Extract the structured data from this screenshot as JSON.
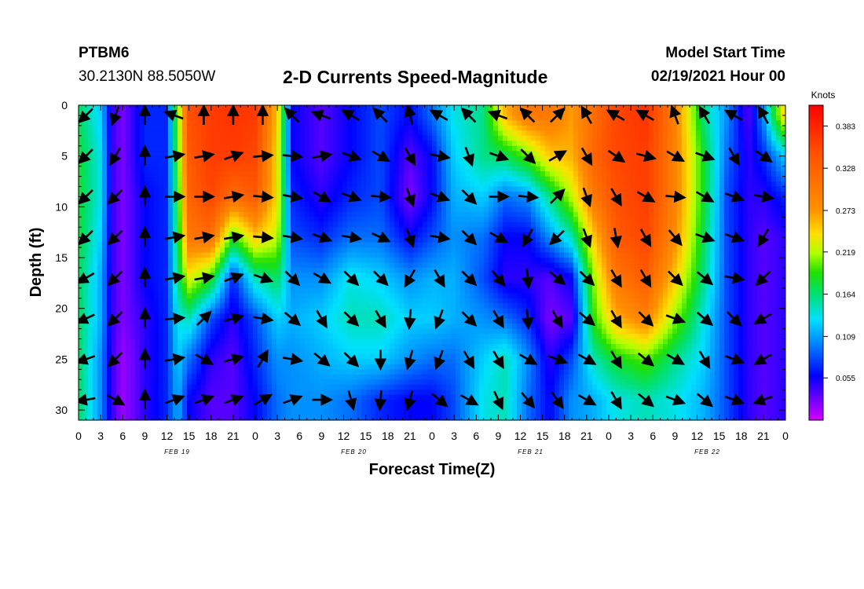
{
  "header": {
    "station_id": "PTBM6",
    "coords": "30.2130N 88.5050W",
    "title": "2-D Currents Speed-Magnitude",
    "model_label": "Model Start Time",
    "model_time": "02/19/2021 Hour 00"
  },
  "chart_data": {
    "type": "heatmap",
    "title": "2-D Currents Speed-Magnitude",
    "xlabel": "Forecast Time(Z)",
    "ylabel": "Depth (ft)",
    "x_ticks": [
      "0",
      "3",
      "6",
      "9",
      "12",
      "15",
      "18",
      "21",
      "0",
      "3",
      "6",
      "9",
      "12",
      "15",
      "18",
      "21",
      "0",
      "3",
      "6",
      "9",
      "12",
      "15",
      "18",
      "21",
      "0",
      "3",
      "6",
      "9",
      "12",
      "15",
      "18",
      "21",
      "0"
    ],
    "date_labels": [
      {
        "label": "FEB 19",
        "tick_index": 4
      },
      {
        "label": "FEB 20",
        "tick_index": 12
      },
      {
        "label": "FEB 21",
        "tick_index": 20
      },
      {
        "label": "FEB 22",
        "tick_index": 28
      }
    ],
    "y_ticks": [
      0,
      5,
      10,
      15,
      20,
      25,
      30
    ],
    "xlim_hours": [
      0,
      96
    ],
    "ylim_ft": [
      0,
      31
    ],
    "y_inverted": true,
    "colorbar": {
      "unit": "Knots",
      "ticks": [
        "0.055",
        "0.109",
        "0.164",
        "0.219",
        "0.273",
        "0.328",
        "0.383"
      ],
      "range": [
        0.0,
        0.41
      ]
    },
    "vector_depths_ft": [
      1,
      5,
      9,
      13,
      17,
      21,
      25,
      29
    ],
    "vector_hours": [
      1,
      5,
      9,
      13,
      17,
      21,
      25,
      29,
      33,
      37,
      41,
      45,
      49,
      53,
      57,
      61,
      65,
      69,
      73,
      77,
      81,
      85,
      89,
      93
    ],
    "speed_columns": [
      {
        "hour": 0,
        "speed": [
          0.16,
          0.17,
          0.17,
          0.17,
          0.16,
          0.16,
          0.16,
          0.16
        ]
      },
      {
        "hour": 3,
        "speed": [
          0.12,
          0.13,
          0.13,
          0.12,
          0.11,
          0.11,
          0.1,
          0.1
        ]
      },
      {
        "hour": 4.5,
        "speed": [
          0.05,
          0.05,
          0.05,
          0.05,
          0.05,
          0.05,
          0.05,
          0.05
        ]
      },
      {
        "hour": 6,
        "speed": [
          0.03,
          0.03,
          0.03,
          0.03,
          0.03,
          0.03,
          0.02,
          0.02
        ]
      },
      {
        "hour": 9,
        "speed": [
          0.07,
          0.07,
          0.06,
          0.06,
          0.06,
          0.05,
          0.05,
          0.05
        ]
      },
      {
        "hour": 12,
        "speed": [
          0.07,
          0.07,
          0.07,
          0.07,
          0.07,
          0.07,
          0.07,
          0.07
        ]
      },
      {
        "hour": 13.5,
        "speed": [
          0.19,
          0.18,
          0.17,
          0.16,
          0.15,
          0.13,
          0.12,
          0.11
        ]
      },
      {
        "hour": 15,
        "speed": [
          0.33,
          0.32,
          0.31,
          0.29,
          0.22,
          0.14,
          0.09,
          0.06
        ]
      },
      {
        "hour": 18,
        "speed": [
          0.35,
          0.35,
          0.34,
          0.3,
          0.18,
          0.08,
          0.05,
          0.04
        ]
      },
      {
        "hour": 21,
        "speed": [
          0.36,
          0.35,
          0.3,
          0.18,
          0.07,
          0.05,
          0.04,
          0.04
        ]
      },
      {
        "hour": 24,
        "speed": [
          0.35,
          0.34,
          0.32,
          0.24,
          0.14,
          0.08,
          0.07,
          0.06
        ]
      },
      {
        "hour": 27,
        "speed": [
          0.24,
          0.23,
          0.23,
          0.21,
          0.16,
          0.12,
          0.1,
          0.09
        ]
      },
      {
        "hour": 29,
        "speed": [
          0.06,
          0.06,
          0.07,
          0.08,
          0.1,
          0.11,
          0.1,
          0.1
        ]
      },
      {
        "hour": 33,
        "speed": [
          0.04,
          0.04,
          0.05,
          0.07,
          0.1,
          0.12,
          0.11,
          0.1
        ]
      },
      {
        "hour": 37,
        "speed": [
          0.06,
          0.06,
          0.07,
          0.09,
          0.13,
          0.14,
          0.12,
          0.09
        ]
      },
      {
        "hour": 41,
        "speed": [
          0.08,
          0.08,
          0.08,
          0.09,
          0.12,
          0.14,
          0.12,
          0.07
        ]
      },
      {
        "hour": 45,
        "speed": [
          0.06,
          0.04,
          0.03,
          0.06,
          0.1,
          0.12,
          0.1,
          0.06
        ]
      },
      {
        "hour": 48,
        "speed": [
          0.09,
          0.06,
          0.06,
          0.08,
          0.11,
          0.12,
          0.09,
          0.06
        ]
      },
      {
        "hour": 51,
        "speed": [
          0.13,
          0.12,
          0.11,
          0.1,
          0.11,
          0.11,
          0.09,
          0.08
        ]
      },
      {
        "hour": 55,
        "speed": [
          0.15,
          0.15,
          0.12,
          0.09,
          0.08,
          0.1,
          0.12,
          0.13
        ]
      },
      {
        "hour": 58,
        "speed": [
          0.25,
          0.16,
          0.09,
          0.06,
          0.05,
          0.09,
          0.14,
          0.14
        ]
      },
      {
        "hour": 61,
        "speed": [
          0.29,
          0.19,
          0.1,
          0.06,
          0.05,
          0.07,
          0.1,
          0.09
        ]
      },
      {
        "hour": 64,
        "speed": [
          0.29,
          0.24,
          0.15,
          0.1,
          0.04,
          0.03,
          0.05,
          0.06
        ]
      },
      {
        "hour": 67,
        "speed": [
          0.26,
          0.25,
          0.21,
          0.14,
          0.06,
          0.04,
          0.08,
          0.1
        ]
      },
      {
        "hour": 70,
        "speed": [
          0.3,
          0.31,
          0.29,
          0.24,
          0.2,
          0.18,
          0.14,
          0.11
        ]
      },
      {
        "hour": 73,
        "speed": [
          0.34,
          0.34,
          0.33,
          0.32,
          0.29,
          0.25,
          0.17,
          0.13
        ]
      },
      {
        "hour": 77,
        "speed": [
          0.36,
          0.35,
          0.35,
          0.34,
          0.32,
          0.28,
          0.19,
          0.14
        ]
      },
      {
        "hour": 81,
        "speed": [
          0.28,
          0.28,
          0.28,
          0.27,
          0.24,
          0.2,
          0.15,
          0.13
        ]
      },
      {
        "hour": 85,
        "speed": [
          0.15,
          0.17,
          0.17,
          0.16,
          0.15,
          0.13,
          0.12,
          0.11
        ]
      },
      {
        "hour": 88,
        "speed": [
          0.1,
          0.09,
          0.08,
          0.08,
          0.08,
          0.08,
          0.08,
          0.08
        ]
      },
      {
        "hour": 91,
        "speed": [
          0.04,
          0.05,
          0.05,
          0.05,
          0.05,
          0.05,
          0.05,
          0.05
        ]
      },
      {
        "hour": 93,
        "speed": [
          0.1,
          0.07,
          0.05,
          0.04,
          0.04,
          0.04,
          0.04,
          0.04
        ]
      },
      {
        "hour": 96,
        "speed": [
          0.24,
          0.12,
          0.07,
          0.05,
          0.05,
          0.05,
          0.05,
          0.05
        ]
      }
    ],
    "direction_rows_deg": [
      [
        225,
        200,
        0,
        290,
        0,
        0,
        0,
        315,
        290,
        300,
        315,
        345,
        300,
        315,
        290,
        315,
        45,
        330,
        300,
        300,
        340,
        330,
        300,
        330
      ],
      [
        225,
        210,
        0,
        80,
        80,
        70,
        85,
        95,
        80,
        110,
        120,
        150,
        100,
        160,
        110,
        135,
        60,
        150,
        125,
        105,
        120,
        110,
        150,
        125
      ],
      [
        225,
        225,
        0,
        90,
        90,
        80,
        95,
        100,
        120,
        110,
        95,
        160,
        110,
        135,
        90,
        95,
        45,
        160,
        150,
        120,
        95,
        120,
        110,
        100
      ],
      [
        225,
        225,
        0,
        80,
        80,
        80,
        95,
        100,
        110,
        100,
        115,
        160,
        100,
        135,
        120,
        210,
        225,
        160,
        170,
        150,
        140,
        110,
        110,
        210
      ],
      [
        240,
        225,
        0,
        80,
        80,
        70,
        110,
        135,
        120,
        135,
        135,
        210,
        150,
        135,
        140,
        175,
        130,
        135,
        150,
        150,
        135,
        130,
        100,
        225
      ],
      [
        245,
        225,
        0,
        85,
        45,
        75,
        100,
        130,
        150,
        135,
        150,
        185,
        200,
        135,
        150,
        175,
        150,
        130,
        150,
        135,
        110,
        130,
        135,
        240
      ],
      [
        250,
        225,
        0,
        80,
        120,
        75,
        30,
        100,
        130,
        135,
        180,
        195,
        200,
        150,
        150,
        120,
        110,
        120,
        150,
        130,
        120,
        150,
        110,
        240
      ],
      [
        260,
        120,
        0,
        70,
        70,
        70,
        60,
        70,
        90,
        165,
        185,
        195,
        130,
        120,
        155,
        140,
        145,
        120,
        150,
        130,
        110,
        130,
        110,
        250
      ]
    ]
  }
}
